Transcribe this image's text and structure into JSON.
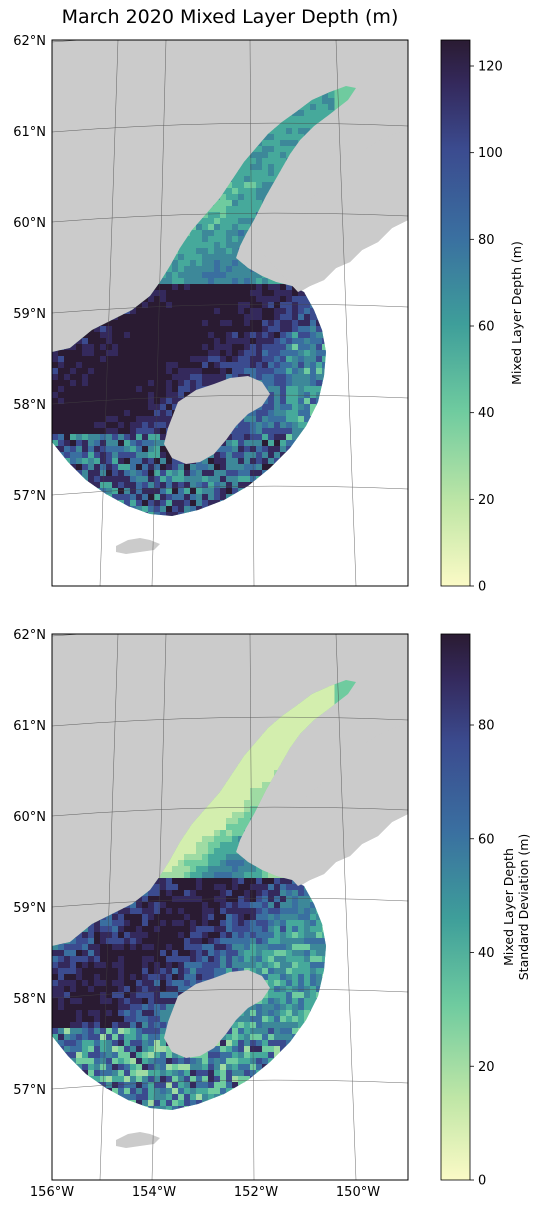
{
  "title": "March 2020 Mixed Layer Depth (m)",
  "colors": {
    "land": "#cbcbcb",
    "ocean_bg": "#ffffff",
    "gridline": "#555555",
    "cmap_low": "#fbfac6",
    "cmap_mid": "#4fb59a",
    "cmap_blue": "#3b5b99",
    "cmap_high": "#2a1b32"
  },
  "lat_labels": [
    "62°N",
    "61°N",
    "60°N",
    "59°N",
    "58°N",
    "57°N"
  ],
  "lon_labels": [
    "156°W",
    "154°W",
    "152°W",
    "150°W"
  ],
  "panels": [
    {
      "name": "mean",
      "colorbar": {
        "label_lines": [
          "Mixed Layer Depth (m)"
        ],
        "ticks": [
          "0",
          "20",
          "40",
          "60",
          "80",
          "100",
          "120"
        ],
        "vmin": 0,
        "vmax": 126
      }
    },
    {
      "name": "std",
      "colorbar": {
        "label_lines": [
          "Mixed Layer Depth",
          "Standard Deviation (m)"
        ],
        "ticks": [
          "0",
          "20",
          "40",
          "60",
          "80"
        ],
        "vmin": 0,
        "vmax": 96
      }
    }
  ]
}
